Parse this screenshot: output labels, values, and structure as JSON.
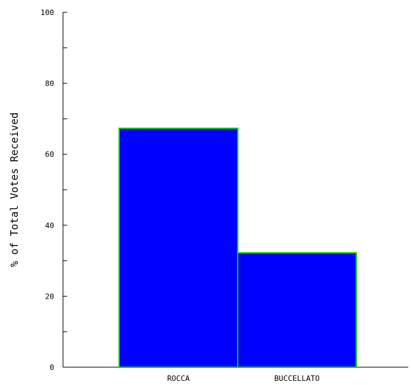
{
  "chart_data": {
    "type": "bar",
    "title": "",
    "xlabel": "",
    "ylabel": "% of Total Votes Received",
    "categories": [
      "ROCCA",
      "BUCCELLATO"
    ],
    "values": [
      67.3,
      32.2
    ],
    "ylim": [
      0,
      100
    ],
    "y_ticks": [
      0,
      20,
      40,
      60,
      80,
      100
    ],
    "y_minor_step": 10,
    "grid": false,
    "legend": "none",
    "colors": {
      "bar_fill": "#0000ff",
      "bar_stroke": "#00cc00",
      "axis": "#000000",
      "text": "#000000"
    }
  }
}
